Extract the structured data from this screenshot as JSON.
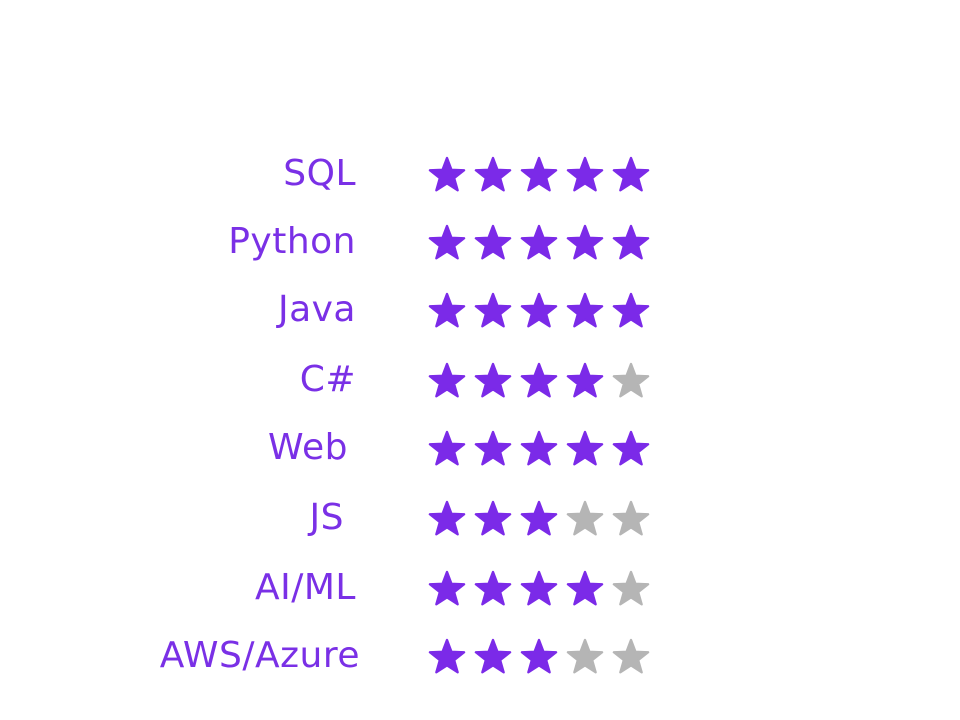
{
  "rating": {
    "max_stars": 5,
    "filled_color": "#7b2ae8",
    "empty_color": "#b5b5b5",
    "icon": "star-icon"
  },
  "skills": [
    {
      "label": "SQL",
      "rating": 5
    },
    {
      "label": "Python",
      "rating": 5
    },
    {
      "label": "Java",
      "rating": 5
    },
    {
      "label": "C#",
      "rating": 4
    },
    {
      "label": "Web",
      "rating": 5
    },
    {
      "label": "JS",
      "rating": 3
    },
    {
      "label": "AI/ML",
      "rating": 4
    },
    {
      "label": "AWS/Azure",
      "rating": 3
    }
  ]
}
